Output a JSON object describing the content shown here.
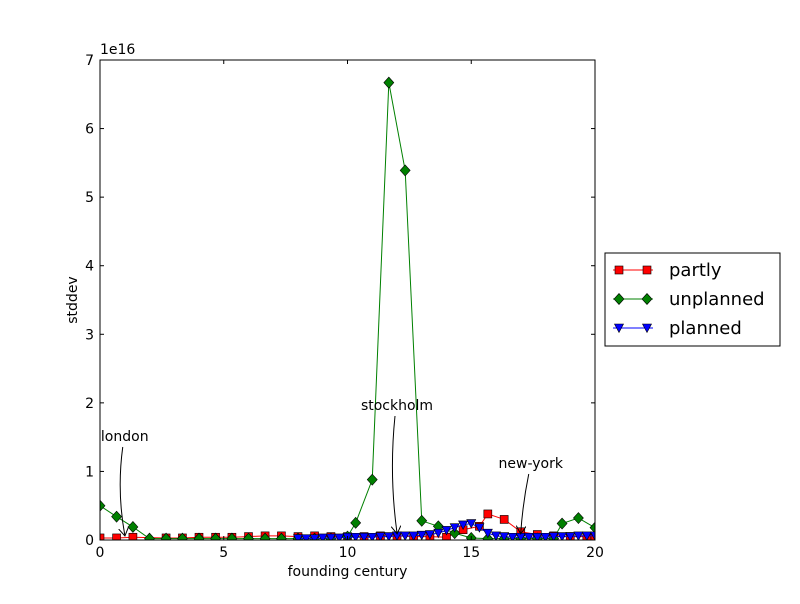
{
  "chart_data": {
    "type": "line",
    "xlabel": "founding century",
    "ylabel": "stddev",
    "offset_label": "1e16",
    "xlim": [
      0,
      20
    ],
    "ylim": [
      0,
      7
    ],
    "xticks": [
      0,
      5,
      10,
      15,
      20
    ],
    "yticks": [
      0,
      1,
      2,
      3,
      4,
      5,
      6,
      7
    ],
    "x_tick_labels": [
      "0",
      "5",
      "10",
      "15",
      "20"
    ],
    "y_tick_labels": [
      "0",
      "1",
      "2",
      "3",
      "4",
      "5",
      "6",
      "7"
    ],
    "grid": false,
    "legend_position": "right",
    "series": [
      {
        "name": "partly",
        "color": "#ff0000",
        "marker": "square",
        "x": [
          0,
          0.67,
          1.33,
          2.67,
          3.33,
          4.0,
          4.67,
          5.33,
          6.0,
          6.67,
          7.33,
          8.0,
          8.67,
          9.33,
          10.0,
          10.67,
          11.33,
          12.0,
          12.67,
          13.33,
          14.0,
          14.67,
          15.33,
          15.67,
          16.33,
          17.0,
          17.67,
          18.33,
          19.0,
          19.67,
          20.0
        ],
        "values": [
          0.03,
          0.03,
          0.04,
          0.03,
          0.03,
          0.04,
          0.04,
          0.04,
          0.05,
          0.06,
          0.06,
          0.05,
          0.06,
          0.05,
          0.05,
          0.05,
          0.06,
          0.06,
          0.05,
          0.05,
          0.04,
          0.15,
          0.2,
          0.38,
          0.3,
          0.12,
          0.08,
          0.06,
          0.05,
          0.05,
          0.05
        ]
      },
      {
        "name": "unplanned",
        "color": "#008000",
        "marker": "diamond",
        "x": [
          0,
          0.67,
          1.33,
          2.0,
          2.67,
          3.33,
          4.0,
          4.67,
          5.33,
          6.0,
          6.67,
          7.33,
          8.0,
          8.67,
          9.33,
          10.0,
          10.33,
          11.0,
          11.67,
          12.33,
          13.0,
          13.67,
          14.33,
          15.0,
          15.67,
          16.33,
          17.0,
          17.67,
          18.33,
          18.67,
          19.33,
          20.0
        ],
        "values": [
          0.5,
          0.34,
          0.19,
          0.02,
          0.02,
          0.02,
          0.02,
          0.02,
          0.02,
          0.02,
          0.02,
          0.02,
          0.02,
          0.02,
          0.02,
          0.05,
          0.25,
          0.88,
          6.67,
          5.39,
          0.28,
          0.2,
          0.1,
          0.03,
          0.02,
          0.02,
          0.02,
          0.02,
          0.02,
          0.24,
          0.32,
          0.18
        ]
      },
      {
        "name": "planned",
        "color": "#0000ff",
        "marker": "triangle-down",
        "x": [
          8.0,
          8.33,
          8.67,
          9.0,
          9.33,
          9.67,
          10.0,
          10.33,
          10.67,
          11.0,
          11.33,
          11.67,
          12.0,
          12.33,
          12.67,
          13.0,
          13.33,
          13.67,
          14.0,
          14.33,
          14.67,
          15.0,
          15.33,
          15.67,
          16.0,
          16.33,
          16.67,
          17.0,
          17.33,
          17.67,
          18.0,
          18.33,
          18.67,
          19.0,
          19.33,
          19.67,
          20.0
        ],
        "values": [
          0.02,
          0.02,
          0.02,
          0.03,
          0.03,
          0.03,
          0.04,
          0.04,
          0.04,
          0.04,
          0.05,
          0.05,
          0.06,
          0.06,
          0.06,
          0.07,
          0.08,
          0.1,
          0.14,
          0.18,
          0.22,
          0.24,
          0.18,
          0.1,
          0.06,
          0.05,
          0.04,
          0.04,
          0.04,
          0.04,
          0.04,
          0.05,
          0.05,
          0.05,
          0.06,
          0.06,
          0.06
        ]
      }
    ],
    "annotations": [
      {
        "text": "london",
        "x": 1.0,
        "y": 0.03
      },
      {
        "text": "stockholm",
        "x": 12.0,
        "y": 0.06
      },
      {
        "text": "new-york",
        "x": 17.0,
        "y": 0.06
      }
    ]
  }
}
